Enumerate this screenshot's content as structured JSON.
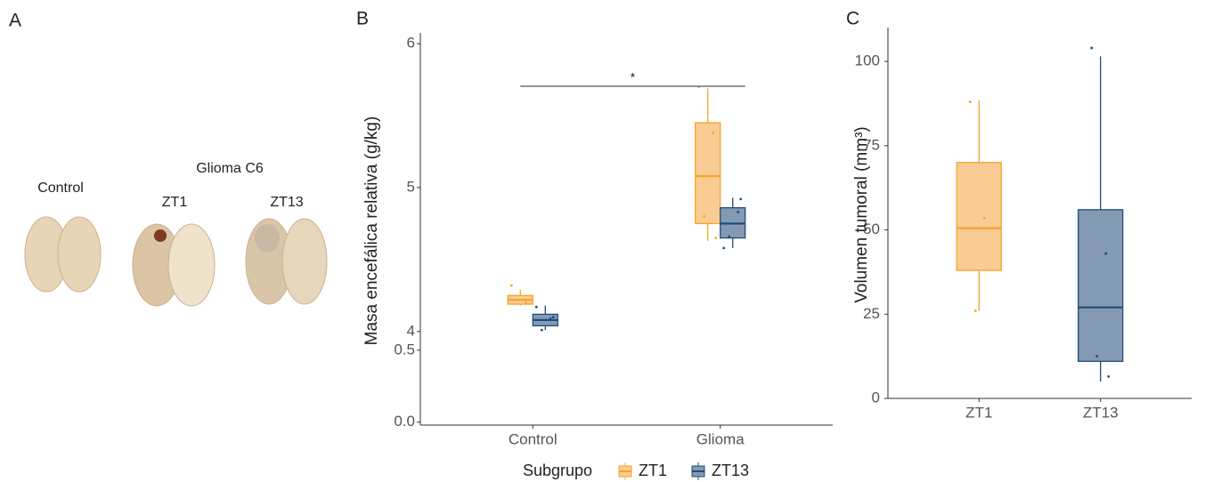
{
  "panel_a": {
    "label": "A",
    "control": "Control",
    "group": "Glioma C6",
    "zt1": "ZT1",
    "zt13": "ZT13"
  },
  "chart_data": [
    {
      "type": "box",
      "label": "B",
      "ylabel": "Masa encefálica relativa (g/kg)",
      "categories": [
        "Control",
        "Glioma"
      ],
      "ylim": [
        -0.02,
        6.05
      ],
      "axis_break": [
        0.5,
        3.87
      ],
      "yticks": [
        {
          "value": 0,
          "label": "0.0"
        },
        0.5,
        4,
        5,
        6
      ],
      "significance": "*",
      "legend_title": "Subgrupo",
      "legend": "bottom",
      "series": [
        {
          "name": "ZT1",
          "color": "#f5a32a",
          "fill": "#f9cc94",
          "boxes": [
            {
              "min": 4.18,
              "q1": 4.19,
              "median": 4.22,
              "q3": 4.25,
              "max": 4.29,
              "points": [
                4.32,
                4.2
              ]
            },
            {
              "min": 4.63,
              "q1": 4.75,
              "median": 5.08,
              "q3": 5.45,
              "max": 5.69,
              "points": [
                5.7,
                5.38,
                4.8,
                4.65
              ]
            }
          ]
        },
        {
          "name": "ZT13",
          "color": "#1f4e79",
          "fill": "#8499b3",
          "boxes": [
            {
              "min": 4.01,
              "q1": 4.04,
              "median": 4.08,
              "q3": 4.12,
              "max": 4.18,
              "points": [
                4.17,
                4.09,
                4.01,
                4.1
              ]
            },
            {
              "min": 4.58,
              "q1": 4.65,
              "median": 4.75,
              "q3": 4.86,
              "max": 4.93,
              "points": [
                4.58,
                4.83,
                4.66,
                4.92
              ]
            }
          ]
        }
      ]
    },
    {
      "type": "box",
      "label": "C",
      "ylabel": "Volumen tumoral (mm³)",
      "categories": [
        "ZT1",
        "ZT13"
      ],
      "ylim": [
        0,
        109
      ],
      "yticks": [
        0,
        25,
        50,
        75,
        100
      ],
      "series": [
        {
          "colors": [
            "#f5a32a",
            "#1f4e79"
          ],
          "fills": [
            "#f9cc94",
            "#8499b3"
          ],
          "boxes": [
            {
              "min": 26,
              "q1": 38,
              "median": 50.5,
              "q3": 70,
              "max": 88.5,
              "points": [
                88,
                53.5,
                26
              ]
            },
            {
              "min": 5,
              "q1": 11,
              "median": 27,
              "q3": 56,
              "max": 101.5,
              "points": [
                104,
                43,
                12.5,
                6.5
              ]
            }
          ]
        }
      ]
    }
  ]
}
